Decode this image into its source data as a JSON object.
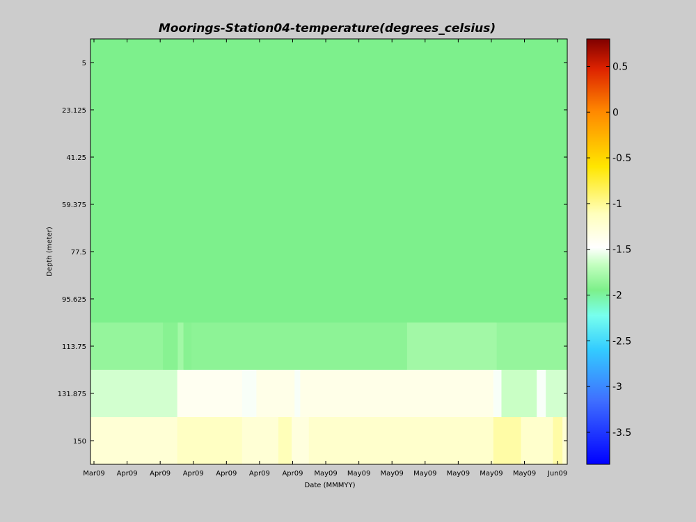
{
  "chart_data": {
    "type": "heatmap",
    "title": "Moorings-Station04-temperature(degrees_celsius)",
    "xlabel": "Date (MMMYY)",
    "ylabel": "Depth (meter)",
    "x_tick_labels": [
      "Mar09",
      "Apr09",
      "Apr09",
      "Apr09",
      "Apr09",
      "Apr09",
      "Apr09",
      "May09",
      "May09",
      "May09",
      "May09",
      "May09",
      "May09",
      "May09",
      "Jun09"
    ],
    "y_tick_labels": [
      "5",
      "23.125",
      "41.25",
      "59.375",
      "77.5",
      "95.625",
      "113.75",
      "131.875",
      "150"
    ],
    "colorbar": {
      "range": [
        -3.85,
        0.8
      ],
      "tick_values": [
        0.5,
        0,
        -0.5,
        -1,
        -1.5,
        -2,
        -2.5,
        -3,
        -3.5
      ],
      "tick_labels": [
        "0.5",
        "0",
        "-0.5",
        "-1",
        "-1.5",
        "-2",
        "-2.5",
        "-3",
        "-3.5"
      ]
    },
    "bands": [
      {
        "depth_top": -4.06,
        "depth_bottom": 104.69,
        "segments": [
          {
            "t0": 0,
            "t1": 1,
            "value": -1.95
          }
        ]
      },
      {
        "depth_top": 104.69,
        "depth_bottom": 122.81,
        "segments": [
          {
            "t0": 0.0,
            "t1": 0.152,
            "value": -1.85
          },
          {
            "t0": 0.152,
            "t1": 0.183,
            "value": -1.9
          },
          {
            "t0": 0.183,
            "t1": 0.195,
            "value": -1.8
          },
          {
            "t0": 0.195,
            "t1": 0.212,
            "value": -1.9
          },
          {
            "t0": 0.212,
            "t1": 0.664,
            "value": -1.88
          },
          {
            "t0": 0.664,
            "t1": 0.852,
            "value": -1.8
          },
          {
            "t0": 0.852,
            "t1": 1.0,
            "value": -1.85
          }
        ]
      },
      {
        "depth_top": 122.81,
        "depth_bottom": 140.94,
        "segments": [
          {
            "t0": 0.0,
            "t1": 0.182,
            "value": -1.62
          },
          {
            "t0": 0.182,
            "t1": 0.318,
            "value": -1.4
          },
          {
            "t0": 0.318,
            "t1": 0.348,
            "value": -1.5
          },
          {
            "t0": 0.348,
            "t1": 0.428,
            "value": -1.35
          },
          {
            "t0": 0.428,
            "t1": 0.44,
            "value": -1.5
          },
          {
            "t0": 0.44,
            "t1": 0.845,
            "value": -1.35
          },
          {
            "t0": 0.845,
            "t1": 0.862,
            "value": -1.5
          },
          {
            "t0": 0.862,
            "t1": 0.936,
            "value": -1.65
          },
          {
            "t0": 0.936,
            "t1": 0.955,
            "value": -1.5
          },
          {
            "t0": 0.955,
            "t1": 1.0,
            "value": -1.62
          }
        ]
      },
      {
        "depth_top": 140.94,
        "depth_bottom": 159.06,
        "segments": [
          {
            "t0": 0.0,
            "t1": 0.182,
            "value": -1.25
          },
          {
            "t0": 0.182,
            "t1": 0.318,
            "value": -1.15
          },
          {
            "t0": 0.318,
            "t1": 0.394,
            "value": -1.25
          },
          {
            "t0": 0.394,
            "t1": 0.422,
            "value": -1.1
          },
          {
            "t0": 0.422,
            "t1": 0.458,
            "value": -1.3
          },
          {
            "t0": 0.458,
            "t1": 0.845,
            "value": -1.2
          },
          {
            "t0": 0.845,
            "t1": 0.903,
            "value": -1.05
          },
          {
            "t0": 0.903,
            "t1": 0.97,
            "value": -1.2
          },
          {
            "t0": 0.97,
            "t1": 0.99,
            "value": -1.05
          },
          {
            "t0": 0.99,
            "t1": 1.0,
            "value": -1.25
          }
        ]
      }
    ]
  }
}
